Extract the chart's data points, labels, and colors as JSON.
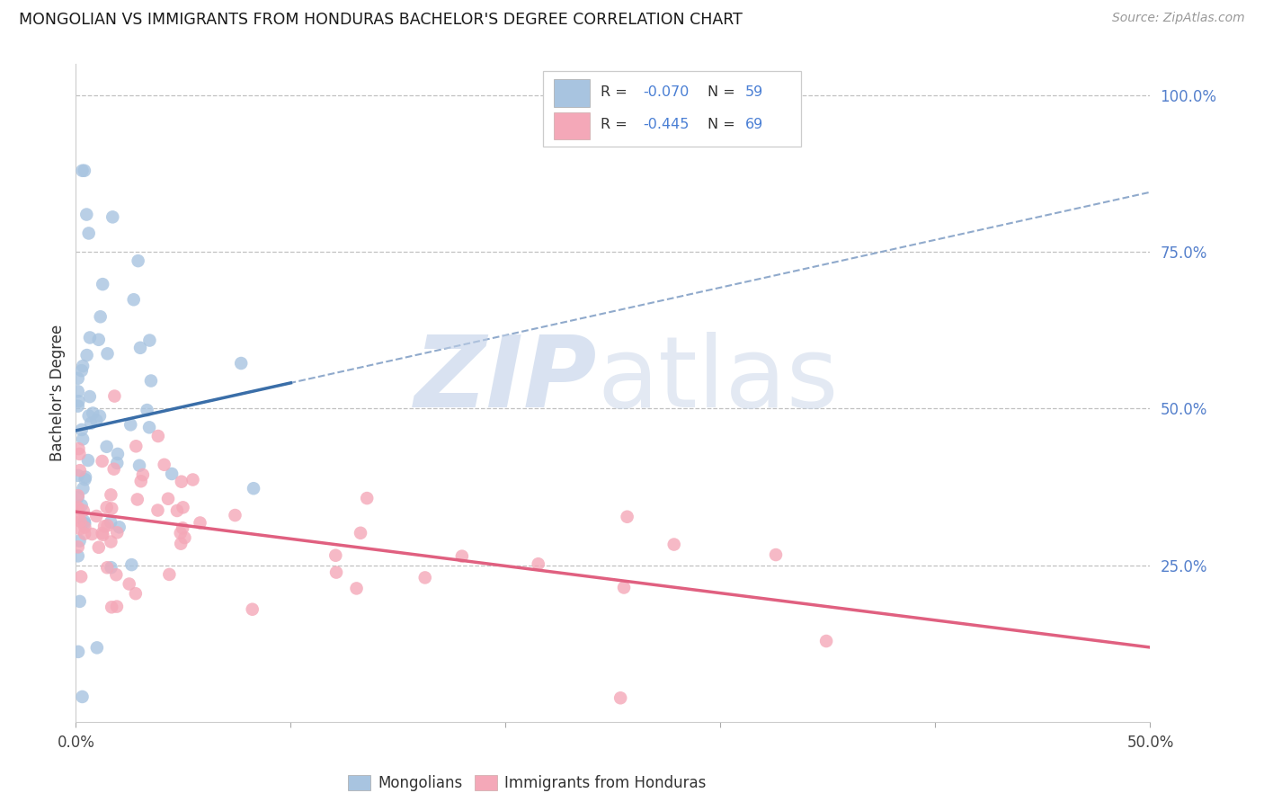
{
  "title": "MONGOLIAN VS IMMIGRANTS FROM HONDURAS BACHELOR'S DEGREE CORRELATION CHART",
  "source": "Source: ZipAtlas.com",
  "ylabel": "Bachelor's Degree",
  "right_yticks": [
    "100.0%",
    "75.0%",
    "50.0%",
    "25.0%"
  ],
  "right_ytick_vals": [
    1.0,
    0.75,
    0.5,
    0.25
  ],
  "xlim": [
    0.0,
    0.5
  ],
  "ylim": [
    0.0,
    1.05
  ],
  "blue_scatter_color": "#a8c4e0",
  "pink_scatter_color": "#f4a8b8",
  "blue_line_color": "#3a6ea8",
  "pink_line_color": "#e06080",
  "dashed_line_color": "#90aacc",
  "right_tick_color": "#5580cc",
  "grid_color": "#bbbbbb",
  "label_color": "#333333",
  "legend_text_dark": "#333333",
  "legend_text_blue": "#4a7fd4",
  "watermark_zip_color": "#c0d0e8",
  "watermark_atlas_color": "#ccd8ea",
  "note_blue_r": "R = -0.070",
  "note_blue_n": "N = 59",
  "note_pink_r": "R = -0.445",
  "note_pink_n": "N = 69"
}
